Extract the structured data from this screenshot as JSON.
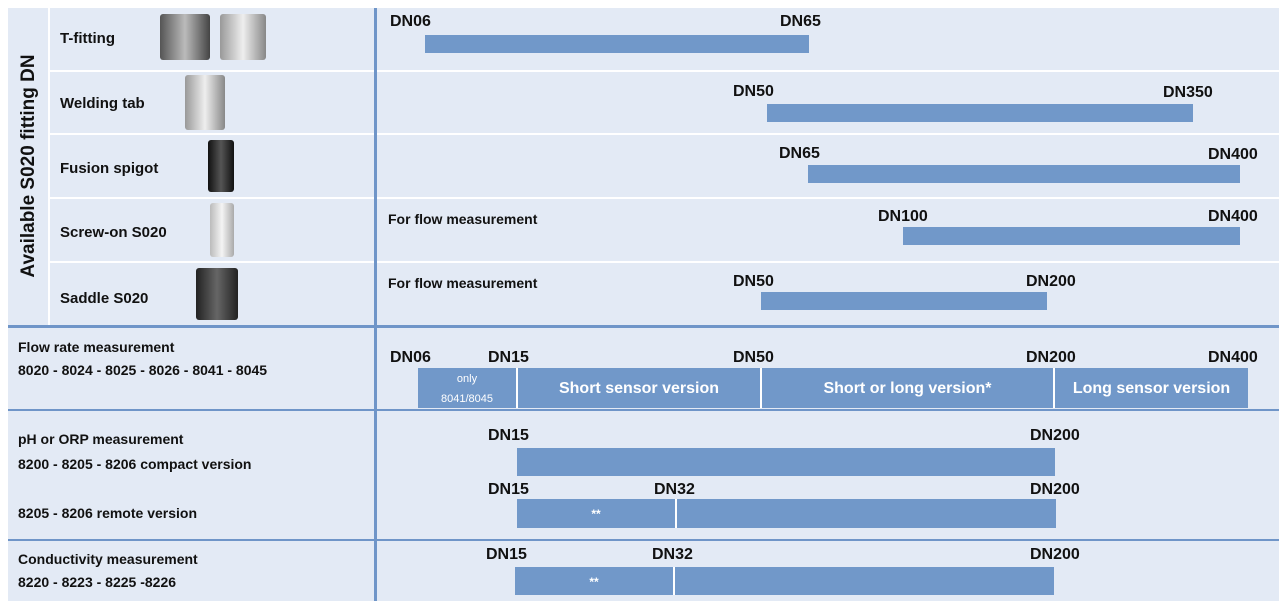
{
  "side_label": "Available S020 fitting DN",
  "fittings": [
    {
      "name": "T-fitting",
      "start": "DN06",
      "end": "DN65"
    },
    {
      "name": "Welding tab",
      "start": "DN50",
      "end": "DN350"
    },
    {
      "name": "Fusion spigot",
      "start": "DN65",
      "end": "DN400"
    },
    {
      "name": "Screw-on S020",
      "note": "For flow measurement",
      "start": "DN100",
      "end": "DN400"
    },
    {
      "name": "Saddle S020",
      "note": "For flow measurement",
      "start": "DN50",
      "end": "DN200"
    }
  ],
  "flow": {
    "title": "Flow rate measurement",
    "models": "8020 - 8024 - 8025 - 8026 - 8041 - 8045",
    "markers": [
      "DN06",
      "DN15",
      "DN50",
      "DN200",
      "DN400"
    ],
    "segments": [
      "only",
      "8041/8045",
      "Short sensor version",
      "Short or long version*",
      "Long sensor version"
    ]
  },
  "ph": {
    "title": "pH or ORP measurement",
    "compact": "8200 - 8205 - 8206 compact version",
    "remote": "8205 - 8206 remote version",
    "compact_markers": [
      "DN15",
      "DN200"
    ],
    "remote_markers": [
      "DN15",
      "DN32",
      "DN200"
    ],
    "remote_note": "**"
  },
  "conductivity": {
    "title": "Conductivity  measurement",
    "models": "8220 - 8223 - 8225 -8226",
    "markers": [
      "DN15",
      "DN32",
      "DN200"
    ],
    "note": "**"
  }
}
